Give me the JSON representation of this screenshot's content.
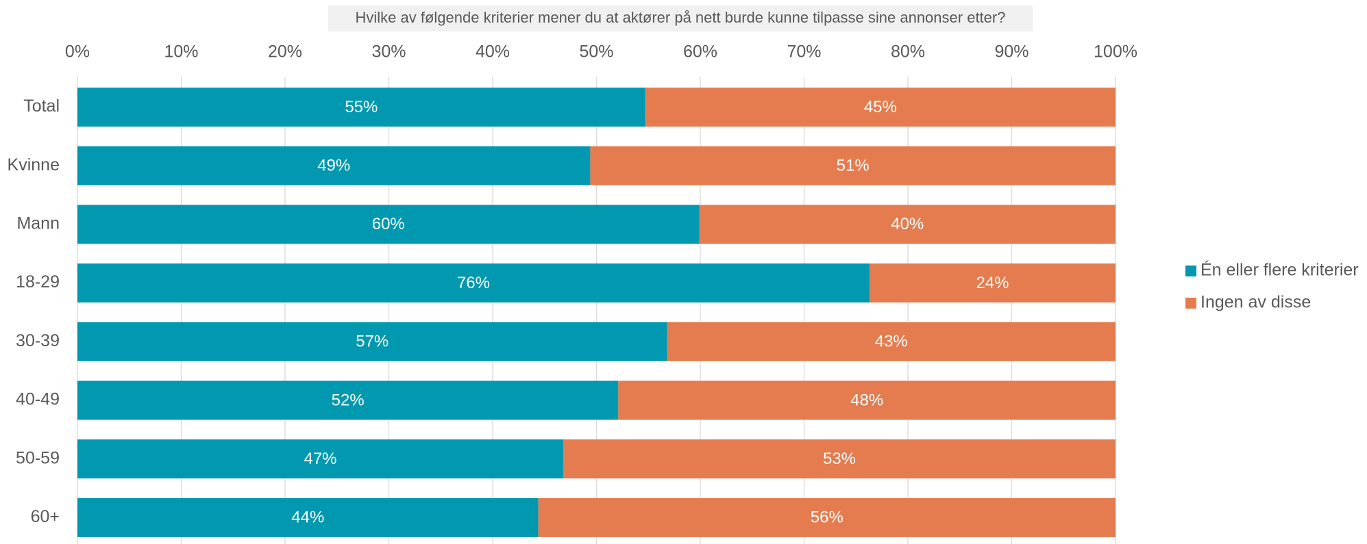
{
  "chart_data": {
    "type": "stacked-bar-horizontal",
    "title": "Hvilke av følgende kriterier mener du at aktører på nett burde kunne tilpasse sine annonser etter?",
    "categories": [
      "Total",
      "Kvinne",
      "Mann",
      "18-29",
      "30-39",
      "40-49",
      "50-59",
      "60+"
    ],
    "series": [
      {
        "name": "Én eller flere kriterier",
        "color": "#0299b0",
        "values": [
          54.7,
          49.4,
          59.9,
          76.3,
          56.8,
          52.1,
          46.8,
          44.4
        ],
        "value_labels": [
          "55%",
          "49%",
          "60%",
          "76%",
          "57%",
          "52%",
          "47%",
          "44%"
        ]
      },
      {
        "name": "Ingen av disse",
        "color": "#e47c4f",
        "values": [
          45.3,
          50.6,
          40.1,
          23.7,
          43.2,
          47.9,
          53.2,
          55.6
        ],
        "value_labels": [
          "45%",
          "51%",
          "40%",
          "24%",
          "43%",
          "48%",
          "53%",
          "56%"
        ]
      }
    ],
    "xlim": [
      0,
      100
    ],
    "xticks": [
      {
        "value": 0,
        "label": "0%"
      },
      {
        "value": 10,
        "label": "10%"
      },
      {
        "value": 20,
        "label": "20%"
      },
      {
        "value": 30,
        "label": "30%"
      },
      {
        "value": 40,
        "label": "40%"
      },
      {
        "value": 50,
        "label": "50%"
      },
      {
        "value": 60,
        "label": "60%"
      },
      {
        "value": 70,
        "label": "70%"
      },
      {
        "value": 80,
        "label": "80%"
      },
      {
        "value": 90,
        "label": "90%"
      },
      {
        "value": 100,
        "label": "100%"
      }
    ],
    "grid": true,
    "legend": "right"
  }
}
